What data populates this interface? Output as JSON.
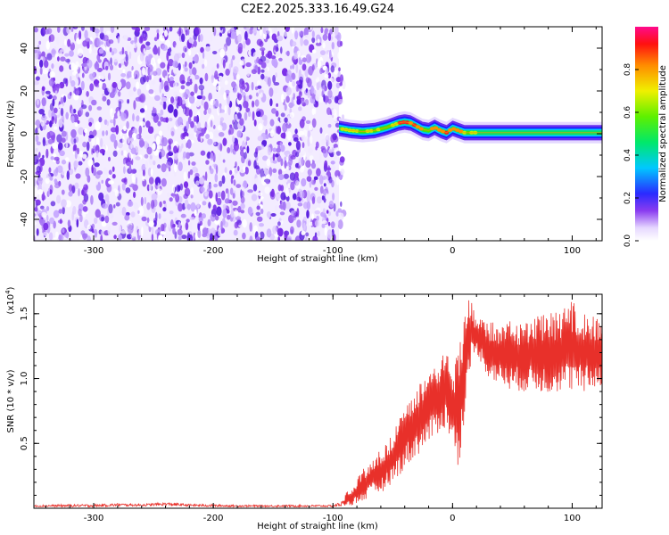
{
  "title": "C2E2.2025.333.16.49.G24",
  "chart_data": [
    {
      "type": "heatmap",
      "xlabel": "Height of straight line (km)",
      "ylabel": "Frequency (Hz)",
      "xlim": [
        -350,
        125
      ],
      "ylim": [
        -50,
        50
      ],
      "x_ticks": [
        "-300",
        "-200",
        "-100",
        "0",
        "100"
      ],
      "x_tick_values": [
        -300,
        -200,
        -100,
        0,
        100
      ],
      "y_ticks": [
        "40",
        "20",
        "0",
        "-20",
        "-40"
      ],
      "y_tick_values": [
        40,
        20,
        0,
        -20,
        -40
      ],
      "noise_region_x": [
        -350,
        -95
      ],
      "signal_track": {
        "x": [
          -95,
          -85,
          -75,
          -65,
          -55,
          -45,
          -40,
          -35,
          -30,
          -25,
          -20,
          -15,
          -10,
          -5,
          0,
          5,
          10,
          20,
          40,
          60,
          80,
          100,
          125
        ],
        "freq": [
          2.5,
          1.5,
          1.0,
          1.5,
          3.0,
          5.0,
          5.5,
          5.0,
          3.5,
          2.0,
          1.5,
          3.0,
          1.5,
          0.5,
          2.5,
          1.5,
          0.5,
          0.5,
          0.5,
          0.5,
          0.5,
          0.5,
          0.5
        ]
      },
      "colorbar": {
        "label": "Normalized spectral amplitude",
        "ticks": [
          "0.0",
          "0.2",
          "0.4",
          "0.6",
          "0.8"
        ],
        "tick_values": [
          0.0,
          0.2,
          0.4,
          0.6,
          0.8
        ],
        "range": [
          0,
          1
        ]
      }
    },
    {
      "type": "line",
      "xlabel": "Height of straight line (km)",
      "ylabel": "SNR (10 * v/v)",
      "scale_note": "(x10",
      "scale_exp": "4",
      "scale_close": ")",
      "xlim": [
        -350,
        125
      ],
      "ylim": [
        0,
        1.65
      ],
      "x_ticks": [
        "-300",
        "-200",
        "-100",
        "0",
        "100"
      ],
      "x_tick_values": [
        -300,
        -200,
        -100,
        0,
        100
      ],
      "y_ticks": [
        "0.5",
        "1.0",
        "1.5"
      ],
      "y_tick_values": [
        0.5,
        1.0,
        1.5
      ],
      "series": [
        {
          "name": "SNR",
          "color": "#e8302a",
          "x": [
            -350,
            -320,
            -300,
            -280,
            -260,
            -240,
            -220,
            -200,
            -180,
            -160,
            -140,
            -120,
            -100,
            -85,
            -75,
            -70,
            -65,
            -60,
            -55,
            -50,
            -45,
            -40,
            -35,
            -30,
            -25,
            -20,
            -15,
            -10,
            -5,
            0,
            5,
            10,
            15,
            20,
            25,
            30,
            40,
            50,
            60,
            70,
            80,
            90,
            100,
            110,
            125
          ],
          "lower": [
            0.01,
            0.01,
            0.01,
            0.015,
            0.015,
            0.02,
            0.015,
            0.01,
            0.01,
            0.01,
            0.01,
            0.01,
            0.01,
            0.02,
            0.05,
            0.08,
            0.1,
            0.12,
            0.15,
            0.2,
            0.25,
            0.3,
            0.35,
            0.4,
            0.45,
            0.5,
            0.55,
            0.6,
            0.6,
            0.5,
            0.3,
            0.7,
            1.1,
            1.2,
            1.1,
            1.0,
            0.95,
            0.9,
            0.9,
            0.9,
            0.88,
            0.9,
            0.9,
            0.88,
            0.95
          ],
          "upper": [
            0.04,
            0.05,
            0.05,
            0.06,
            0.05,
            0.07,
            0.05,
            0.05,
            0.04,
            0.04,
            0.04,
            0.04,
            0.04,
            0.15,
            0.3,
            0.35,
            0.42,
            0.45,
            0.5,
            0.6,
            0.7,
            0.85,
            0.9,
            0.95,
            1.0,
            1.05,
            1.1,
            1.2,
            1.25,
            1.0,
            1.25,
            1.5,
            1.65,
            1.45,
            1.5,
            1.45,
            1.42,
            1.45,
            1.45,
            1.5,
            1.5,
            1.52,
            1.6,
            1.5,
            1.48
          ]
        }
      ]
    }
  ]
}
